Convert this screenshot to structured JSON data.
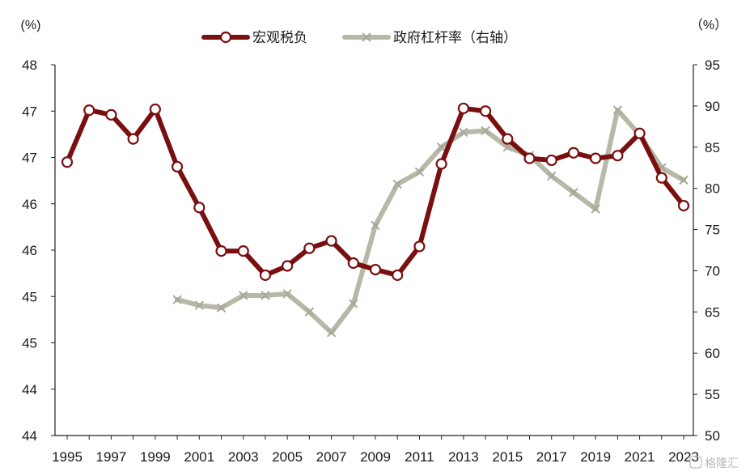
{
  "chart_data": {
    "type": "line",
    "y_left_unit": "(%)",
    "y_right_unit": "（%）",
    "x_tick_labels": [
      "1995",
      "1997",
      "1999",
      "2001",
      "2003",
      "2005",
      "2007",
      "2009",
      "2011",
      "2013",
      "2015",
      "2017",
      "2019",
      "2021",
      "2023"
    ],
    "y_left_tick_labels": [
      "44",
      "44",
      "45",
      "45",
      "46",
      "46",
      "47",
      "47",
      "48"
    ],
    "y_right_tick_labels": [
      "50",
      "55",
      "60",
      "65",
      "70",
      "75",
      "80",
      "85",
      "90",
      "95"
    ],
    "y_left_range": [
      44,
      48
    ],
    "y_right_range": [
      50,
      95
    ],
    "legend_position": "top-center",
    "grid": false,
    "series": [
      {
        "name": "宏观税负",
        "axis": "left",
        "color": "#7a0f0f",
        "marker": "open-circle",
        "x": [
          1995,
          1996,
          1997,
          1998,
          1999,
          2000,
          2001,
          2002,
          2003,
          2004,
          2005,
          2006,
          2007,
          2008,
          2009,
          2010,
          2011,
          2012,
          2013,
          2014,
          2015,
          2016,
          2017,
          2018,
          2019,
          2020,
          2021,
          2022,
          2023
        ],
        "y": [
          46.95,
          47.51,
          47.46,
          47.2,
          47.52,
          46.9,
          46.46,
          45.99,
          45.99,
          45.73,
          45.83,
          46.02,
          46.1,
          45.86,
          45.79,
          45.73,
          46.04,
          46.93,
          47.53,
          47.5,
          47.2,
          46.99,
          46.97,
          47.05,
          46.99,
          47.02,
          47.26,
          46.78,
          46.48
        ]
      },
      {
        "name": "政府杠杆率（右轴）",
        "axis": "right",
        "color": "#b8b8a8",
        "marker": "cross",
        "x": [
          2000,
          2001,
          2002,
          2003,
          2004,
          2005,
          2006,
          2007,
          2008,
          2009,
          2010,
          2011,
          2012,
          2013,
          2014,
          2015,
          2016,
          2017,
          2018,
          2019,
          2020,
          2021,
          2022,
          2023
        ],
        "y": [
          66.5,
          65.8,
          65.5,
          67.0,
          67.0,
          67.2,
          65.0,
          62.5,
          66.0,
          75.5,
          80.5,
          82.0,
          85.0,
          86.8,
          87.0,
          85.0,
          84.0,
          81.5,
          79.5,
          77.5,
          89.5,
          86.5,
          82.5,
          81.0
        ]
      }
    ]
  },
  "watermark": "格隆汇"
}
